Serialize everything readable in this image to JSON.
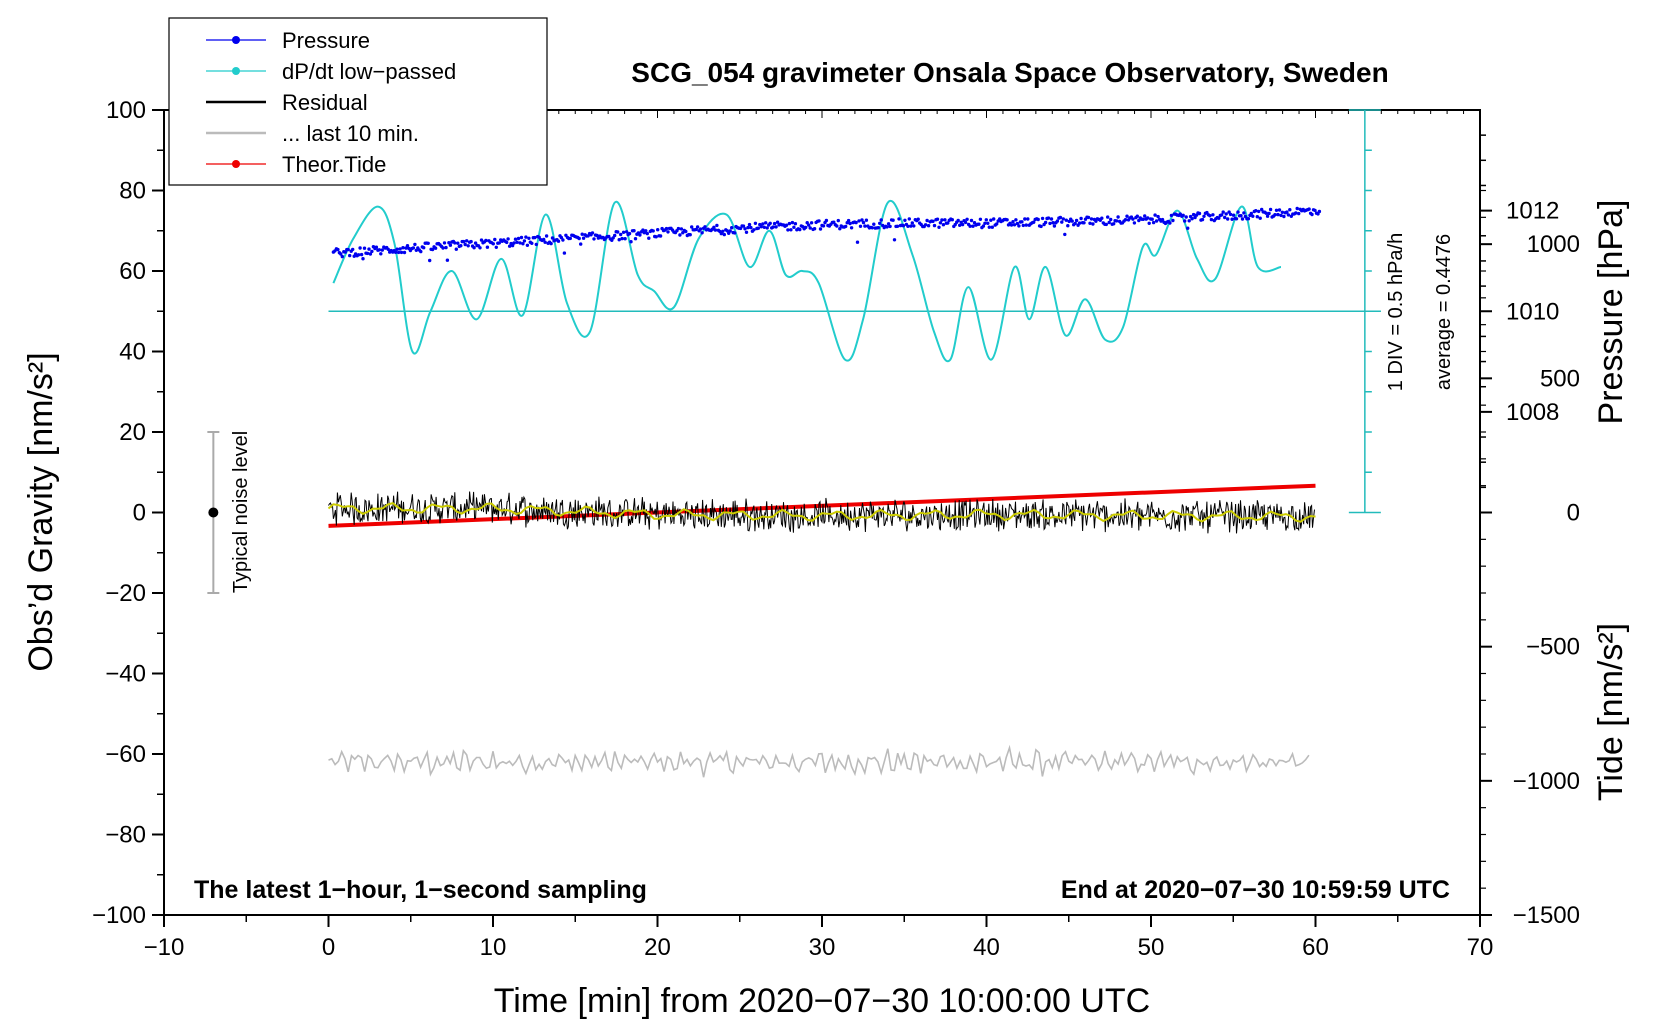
{
  "chart_data": {
    "type": "line",
    "title": "SCG_054 gravimeter Onsala Space Observatory, Sweden",
    "xlabel": "Time [min] from 2020−07−30 10:00:00 UTC",
    "ylabel_left": "Obs’d Gravity [nm/s²]",
    "ylabel_right_pressure": "Pressure [hPa]",
    "ylabel_right_tide": "Tide [nm/s²]",
    "footer_left": "The latest 1−hour, 1−second sampling",
    "footer_right": "End at 2020−07−30 10:59:59 UTC",
    "xlim": [
      -10,
      70
    ],
    "ylim": [
      -100,
      100
    ],
    "x_ticks": [
      -10,
      0,
      10,
      20,
      30,
      40,
      50,
      60,
      70
    ],
    "x_tick_labels": [
      "−10",
      "0",
      "10",
      "20",
      "30",
      "40",
      "50",
      "60",
      "70"
    ],
    "y_ticks": [
      -100,
      -80,
      -60,
      -40,
      -20,
      0,
      20,
      40,
      60,
      80,
      100
    ],
    "y_tick_labels": [
      "−100",
      "−80",
      "−60",
      "−40",
      "−20",
      "0",
      "20",
      "40",
      "60",
      "80",
      "100"
    ],
    "pressure_axis": {
      "ticks": [
        1008,
        1010,
        1012
      ],
      "tick_labels": [
        "1008",
        "1010",
        "1012"
      ],
      "ref_ticks": [
        {
          "g": 50,
          "p": 1010
        },
        {
          "g": 75,
          "p": 1012
        }
      ]
    },
    "tide_axis": {
      "ticks": [
        1000,
        500,
        0,
        -500,
        -1000,
        -1500
      ],
      "tick_labels": [
        "1000",
        "500",
        "0",
        "−500",
        "−1000",
        "−1500"
      ],
      "range": [
        -1500,
        1500
      ]
    },
    "dpdt_scale": {
      "x": 63,
      "y_range": [
        0,
        100
      ],
      "baseline": 50,
      "label_div": "1 DIV = 0.5 hPa/h",
      "label_avg": "average = 0.4476"
    },
    "noise_bar": {
      "x": -7,
      "center": 0,
      "half_range": 20,
      "label": "Typical noise level"
    },
    "legend": [
      {
        "label": "Pressure",
        "color": "#0000ee",
        "marker": true
      },
      {
        "label": "dP/dt low−passed",
        "color": "#22cccc",
        "marker": true
      },
      {
        "label": "Residual",
        "color": "#000000",
        "marker": false
      },
      {
        "label": "... last 10 min.",
        "color": "#bbbbbb",
        "marker": false
      },
      {
        "label": "Theor.Tide",
        "color": "#ee0000",
        "marker": true
      }
    ],
    "series": [
      {
        "name": "Pressure",
        "color": "#0000ee",
        "axis": "pressure_hPa",
        "x": [
          0,
          5,
          10,
          15,
          20,
          25,
          30,
          35,
          40,
          45,
          50,
          55,
          60
        ],
        "values": [
          1011.15,
          1011.25,
          1011.35,
          1011.45,
          1011.55,
          1011.65,
          1011.72,
          1011.75,
          1011.75,
          1011.78,
          1011.82,
          1011.9,
          1012.0
        ]
      },
      {
        "name": "dP/dt low−passed",
        "color": "#22cccc",
        "axis": "gravity_units",
        "x": [
          0.3,
          1.5,
          3.0,
          4.0,
          5.1,
          6.2,
          7.5,
          9.0,
          10.5,
          11.8,
          13.2,
          14.5,
          15.9,
          17.4,
          18.8,
          19.8,
          21.0,
          22.5,
          24.2,
          25.6,
          26.8,
          27.8,
          28.8,
          29.8,
          31.4,
          32.5,
          34.0,
          35.5,
          36.8,
          37.8,
          38.9,
          40.3,
          41.7,
          42.6,
          43.6,
          44.8,
          46.0,
          47.2,
          48.3,
          49.5,
          50.3,
          51.6,
          52.8,
          53.9,
          55.5,
          56.5,
          57.9
        ],
        "values": [
          57,
          68,
          76,
          67,
          40,
          50,
          60,
          48,
          63,
          49,
          74,
          52,
          45,
          77,
          59,
          55,
          51,
          68,
          74,
          61,
          70,
          59,
          60,
          57,
          38,
          48,
          77,
          64,
          45,
          38,
          56,
          38,
          61,
          48,
          61,
          44,
          53,
          43,
          46,
          66,
          64,
          75,
          63,
          58,
          76,
          61,
          61
        ]
      },
      {
        "name": "Residual",
        "color": "#000000",
        "axis": "gravity_units",
        "x": [
          0,
          10,
          20,
          30,
          40,
          50,
          60
        ],
        "values": [
          1,
          1,
          -0.5,
          -0.8,
          -0.5,
          -0.8,
          -1
        ]
      },
      {
        "name": "... last 10 min.",
        "color": "#bbbbbb",
        "axis": "gravity_units",
        "x": [
          0,
          10,
          20,
          30,
          40,
          50,
          60
        ],
        "values": [
          -62,
          -62,
          -62,
          -62,
          -62,
          -62,
          -62
        ]
      },
      {
        "name": "Theor.Tide",
        "color": "#ee0000",
        "axis": "tide_nm_s2",
        "x": [
          0,
          60
        ],
        "values": [
          -50,
          100
        ]
      }
    ]
  }
}
